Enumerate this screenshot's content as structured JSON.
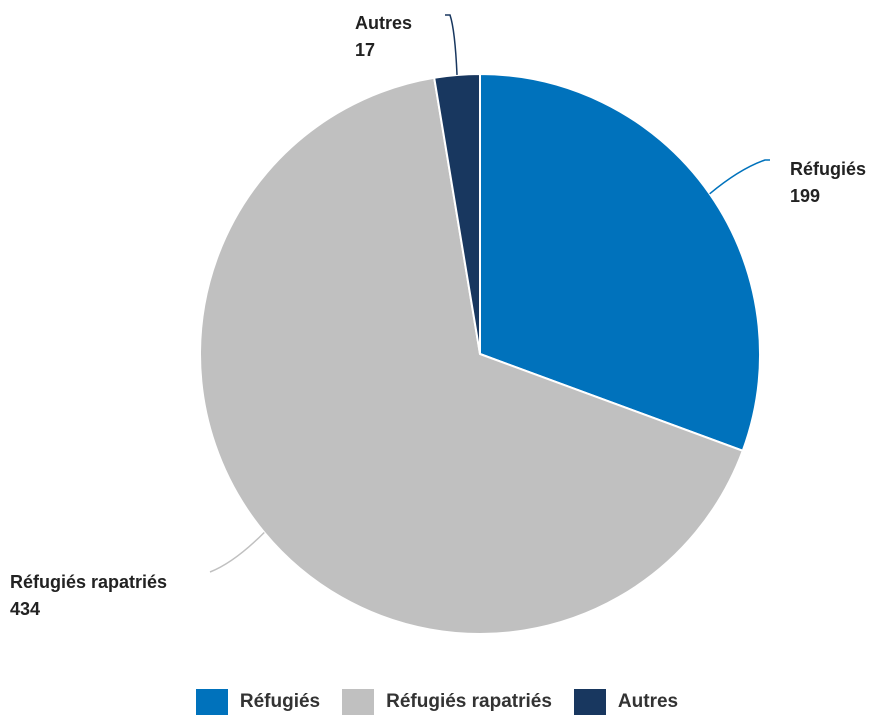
{
  "chart_data": {
    "type": "pie",
    "slices": [
      {
        "label": "Réfugiés",
        "value": 199,
        "color": "#0072bc"
      },
      {
        "label": "Réfugiés rapatriés",
        "value": 434,
        "color": "#c0c0c0"
      },
      {
        "label": "Autres",
        "value": 17,
        "color": "#18375f"
      }
    ],
    "legend_position": "bottom",
    "start_angle": "top",
    "direction": "clockwise"
  }
}
